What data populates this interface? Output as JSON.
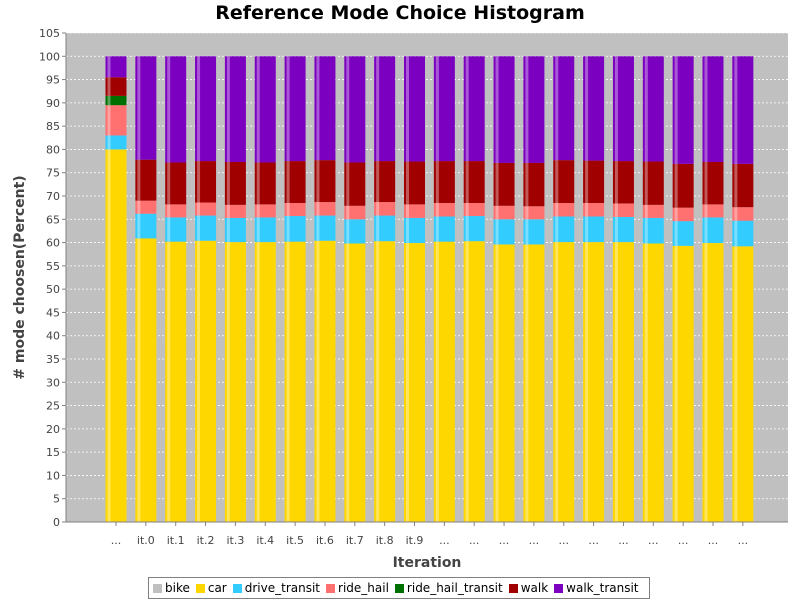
{
  "chart_data": {
    "type": "bar",
    "stacked": true,
    "title": "Reference Mode Choice Histogram",
    "xlabel": "Iteration",
    "ylabel": "# mode choosen(Percent)",
    "ylim": [
      0,
      105
    ],
    "yticks": [
      0,
      5,
      10,
      15,
      20,
      25,
      30,
      35,
      40,
      45,
      50,
      55,
      60,
      65,
      70,
      75,
      80,
      85,
      90,
      95,
      100,
      105
    ],
    "grid": true,
    "legend_position": "bottom",
    "categories": [
      "...",
      "it.0",
      "it.1",
      "it.2",
      "it.3",
      "it.4",
      "it.5",
      "it.6",
      "it.7",
      "it.8",
      "it.9",
      "...",
      "...",
      "...",
      "...",
      "...",
      "...",
      "...",
      "...",
      "...",
      "...",
      "..."
    ],
    "series": [
      {
        "name": "bike",
        "color": "#c0c0c0",
        "values": [
          0,
          0,
          0,
          0,
          0,
          0,
          0,
          0,
          0,
          0,
          0,
          0,
          0,
          0,
          0,
          0,
          0,
          0,
          0,
          0,
          0,
          0
        ]
      },
      {
        "name": "car",
        "color": "#ffd700",
        "values": [
          80.0,
          60.9,
          60.2,
          60.4,
          60.1,
          60.1,
          60.2,
          60.4,
          59.8,
          60.3,
          59.9,
          60.2,
          60.3,
          59.6,
          59.6,
          60.1,
          60.1,
          60.1,
          59.8,
          59.3,
          59.9,
          59.2
        ]
      },
      {
        "name": "drive_transit",
        "color": "#33ccff",
        "values": [
          3.0,
          5.3,
          5.2,
          5.4,
          5.2,
          5.3,
          5.5,
          5.4,
          5.2,
          5.5,
          5.4,
          5.4,
          5.4,
          5.4,
          5.4,
          5.5,
          5.5,
          5.4,
          5.5,
          5.3,
          5.5,
          5.5
        ]
      },
      {
        "name": "ride_hail",
        "color": "#ff7070",
        "values": [
          6.5,
          2.8,
          2.8,
          2.8,
          2.8,
          2.8,
          2.8,
          2.9,
          2.9,
          2.9,
          2.9,
          2.9,
          2.8,
          2.9,
          2.8,
          2.9,
          2.9,
          2.9,
          2.8,
          2.9,
          2.8,
          2.9
        ]
      },
      {
        "name": "ride_hail_transit",
        "color": "#007000",
        "values": [
          2.0,
          0,
          0,
          0,
          0,
          0,
          0,
          0,
          0,
          0,
          0,
          0,
          0,
          0,
          0,
          0,
          0,
          0,
          0,
          0,
          0,
          0
        ]
      },
      {
        "name": "walk",
        "color": "#a00000",
        "values": [
          4.0,
          8.8,
          9.0,
          8.9,
          9.2,
          9.0,
          9.0,
          9.0,
          9.3,
          8.8,
          9.2,
          9.0,
          9.0,
          9.2,
          9.3,
          9.2,
          9.1,
          9.1,
          9.3,
          9.4,
          9.1,
          9.3
        ]
      },
      {
        "name": "walk_transit",
        "color": "#7b00c0",
        "values": [
          4.5,
          22.2,
          22.8,
          22.5,
          22.7,
          22.8,
          22.5,
          22.3,
          22.8,
          22.5,
          22.6,
          22.5,
          22.5,
          22.9,
          22.9,
          22.3,
          22.4,
          22.5,
          22.6,
          23.1,
          22.7,
          23.1
        ]
      }
    ]
  }
}
